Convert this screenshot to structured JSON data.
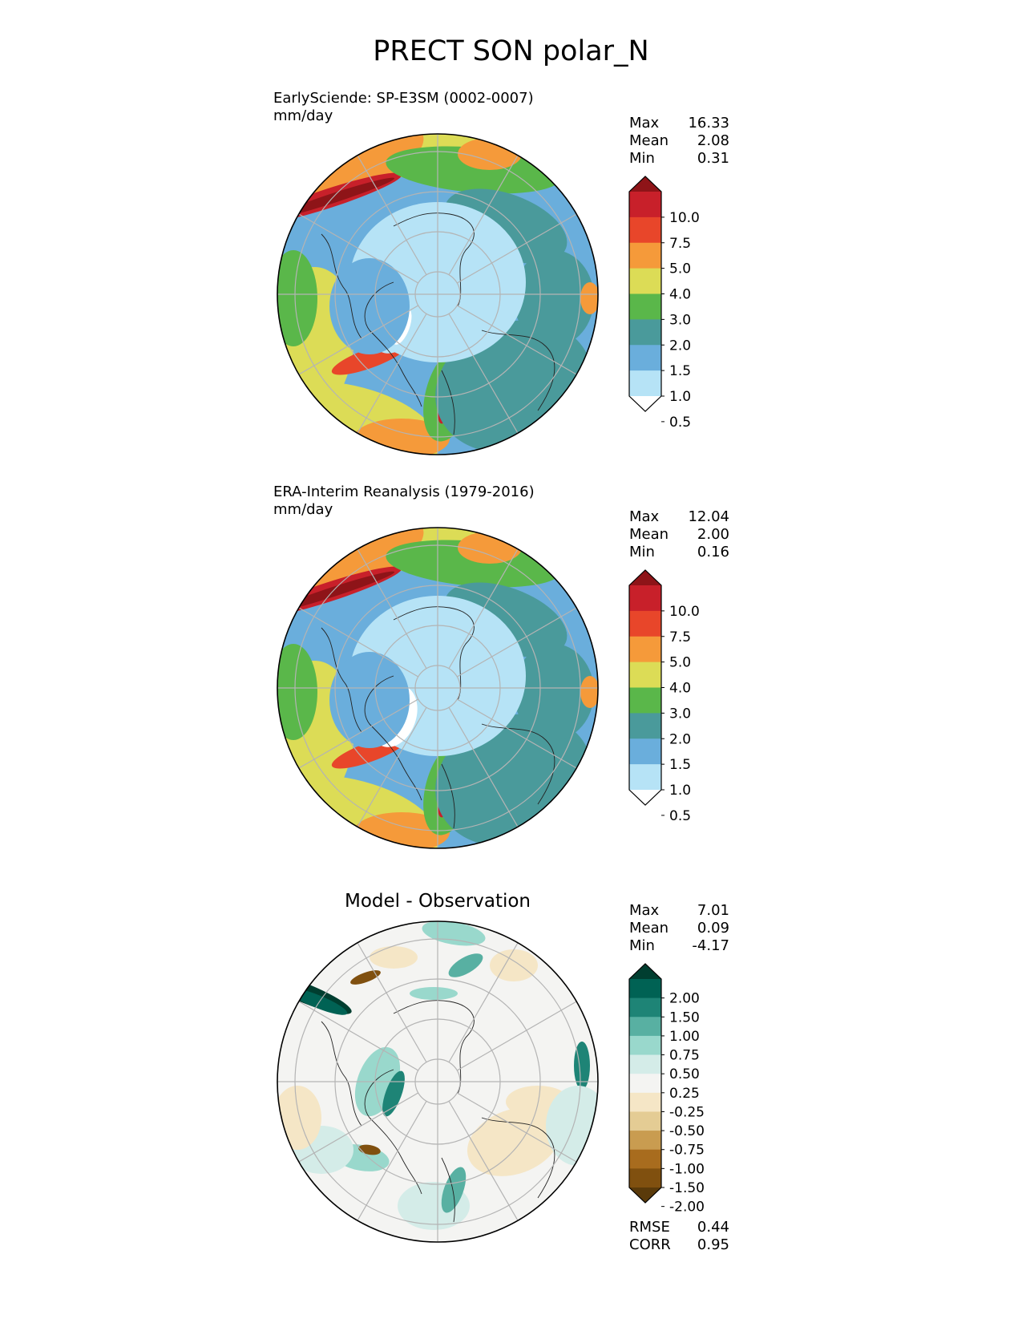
{
  "title": "PRECT SON polar_N",
  "colors": {
    "abs_levels": [
      "#ffffff",
      "#b6e3f6",
      "#6aaedc",
      "#4a9a9b",
      "#5ab74a",
      "#dcdc56",
      "#f59a3a",
      "#e8462a",
      "#c8202a",
      "#8e1418"
    ],
    "diff_levels": [
      "#5a3a0a",
      "#80500f",
      "#a86c1e",
      "#c99c50",
      "#e4cc94",
      "#f5e6c6",
      "#f4f4f2",
      "#d4ece8",
      "#99d8cc",
      "#58b0a2",
      "#1e8476",
      "#006254",
      "#003e30"
    ],
    "grid": "#b4b4b4",
    "coast": "#222222"
  },
  "chart_data": [
    {
      "type": "heatmap",
      "projection": "north-polar-stereographic",
      "title": "EarlySciende: SP-E3SM (0002-0007)",
      "units": "mm/day",
      "stats": {
        "max": "16.33",
        "mean": "2.08",
        "min": "0.31"
      },
      "colorbar": {
        "ticks": [
          "10.0",
          "7.5",
          "5.0",
          "4.0",
          "3.0",
          "2.0",
          "1.5",
          "1.0",
          "0.5"
        ],
        "extend": "both"
      }
    },
    {
      "type": "heatmap",
      "projection": "north-polar-stereographic",
      "title": "ERA-Interim Reanalysis (1979-2016)",
      "units": "mm/day",
      "stats": {
        "max": "12.04",
        "mean": "2.00",
        "min": "0.16"
      },
      "colorbar": {
        "ticks": [
          "10.0",
          "7.5",
          "5.0",
          "4.0",
          "3.0",
          "2.0",
          "1.5",
          "1.0",
          "0.5"
        ],
        "extend": "both"
      }
    },
    {
      "type": "heatmap",
      "projection": "north-polar-stereographic",
      "title": "Model - Observation",
      "stats": {
        "max": "7.01",
        "mean": "0.09",
        "min": "-4.17"
      },
      "metrics": {
        "rmse": "0.44",
        "corr": "0.95"
      },
      "colorbar": {
        "ticks": [
          "2.00",
          "1.50",
          "1.00",
          "0.75",
          "0.50",
          "0.25",
          "-0.25",
          "-0.50",
          "-0.75",
          "-1.00",
          "-1.50",
          "-2.00"
        ],
        "extend": "both"
      }
    }
  ],
  "labels": {
    "max": "Max",
    "mean": "Mean",
    "min": "Min",
    "rmse": "RMSE",
    "corr": "CORR"
  }
}
